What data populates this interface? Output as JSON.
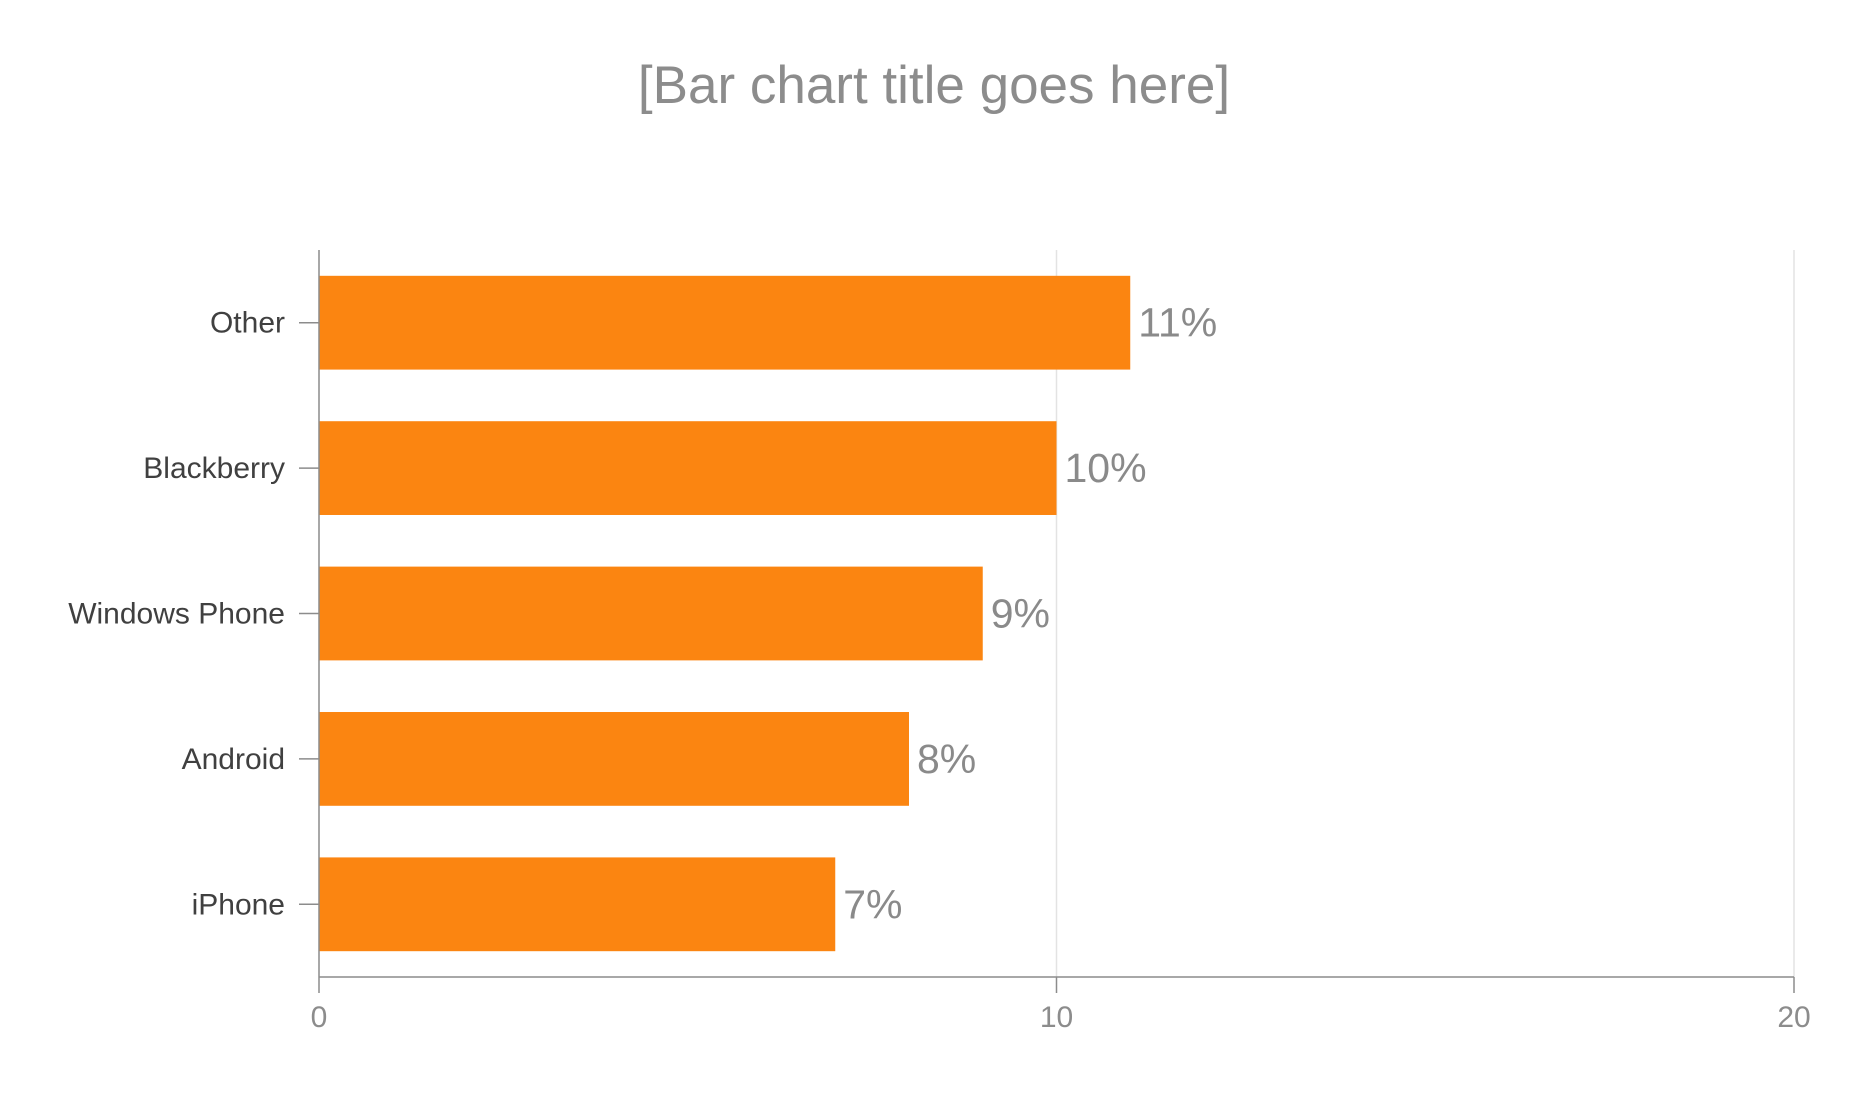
{
  "chart_data": {
    "type": "bar",
    "orientation": "horizontal",
    "title": "[Bar chart title goes here]",
    "xlabel": "",
    "ylabel": "",
    "categories": [
      "Other",
      "Blackberry",
      "Windows Phone",
      "Android",
      "iPhone"
    ],
    "values": [
      11,
      10,
      9,
      8,
      7
    ],
    "value_labels": [
      "11%",
      "10%",
      "9%",
      "8%",
      "7%"
    ],
    "xlim": [
      0,
      20
    ],
    "x_ticks": [
      0,
      10,
      20
    ],
    "x_tick_labels": [
      "0",
      "10",
      "20"
    ],
    "grid": true,
    "legend": "none",
    "colors": {
      "bar": "#fb8511",
      "grid": "#e3e3e3",
      "axis": "#8c8c8c",
      "title": "#8c8c8c",
      "category_text": "#404040",
      "value_text": "#8a8a8a"
    }
  }
}
